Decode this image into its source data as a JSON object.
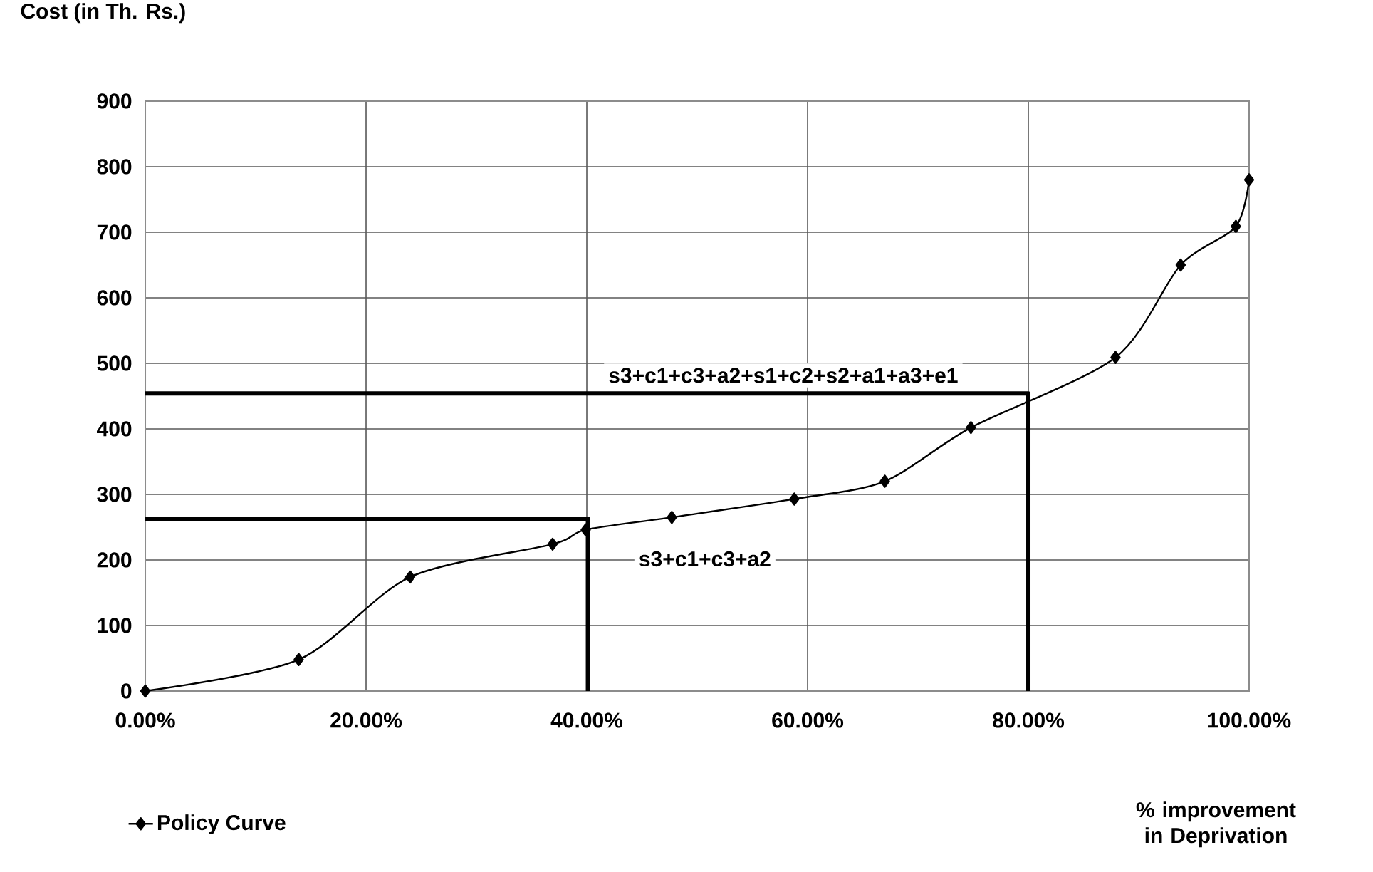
{
  "chart_data": {
    "type": "line",
    "xlabel": "% improvement in Deprivation",
    "ylabel": "Cost (in Th. Rs.)",
    "x": [
      0,
      13.9,
      24,
      36.9,
      39.9,
      47.7,
      58.8,
      67,
      74.8,
      87.9,
      93.8,
      98.8,
      100
    ],
    "series": [
      {
        "name": "Policy Curve",
        "color": "#000000",
        "marker": "diamond",
        "values": [
          0,
          48,
          174,
          224,
          246,
          265,
          293,
          320,
          402,
          509,
          650,
          709,
          780
        ]
      },
      {
        "color": "#000000",
        "marker": "none",
        "x": [
          0,
          40.1,
          40.1
        ],
        "values": [
          263,
          263,
          0
        ]
      },
      {
        "color": "#000000",
        "marker": "none",
        "x": [
          0,
          80,
          80
        ],
        "values": [
          454,
          454,
          0
        ]
      }
    ],
    "xlim": [
      0,
      100
    ],
    "ylim": [
      0,
      900
    ],
    "xticks": [
      {
        "value": 0,
        "label": "0.00%"
      },
      {
        "value": 20,
        "label": "20.00%"
      },
      {
        "value": 40,
        "label": "40.00%"
      },
      {
        "value": 60,
        "label": "60.00%"
      },
      {
        "value": 80,
        "label": "80.00%"
      },
      {
        "value": 100,
        "label": "100.00%"
      }
    ],
    "yticks": [
      0,
      100,
      200,
      300,
      400,
      500,
      600,
      700,
      800,
      900
    ],
    "grid": true,
    "legend": "bottom left",
    "line_style": "solid",
    "annotations": [
      "s3+c1+c3+a2+s1+c2+s2+a1+a3+e1",
      "s3+c1+c3+a2"
    ]
  }
}
